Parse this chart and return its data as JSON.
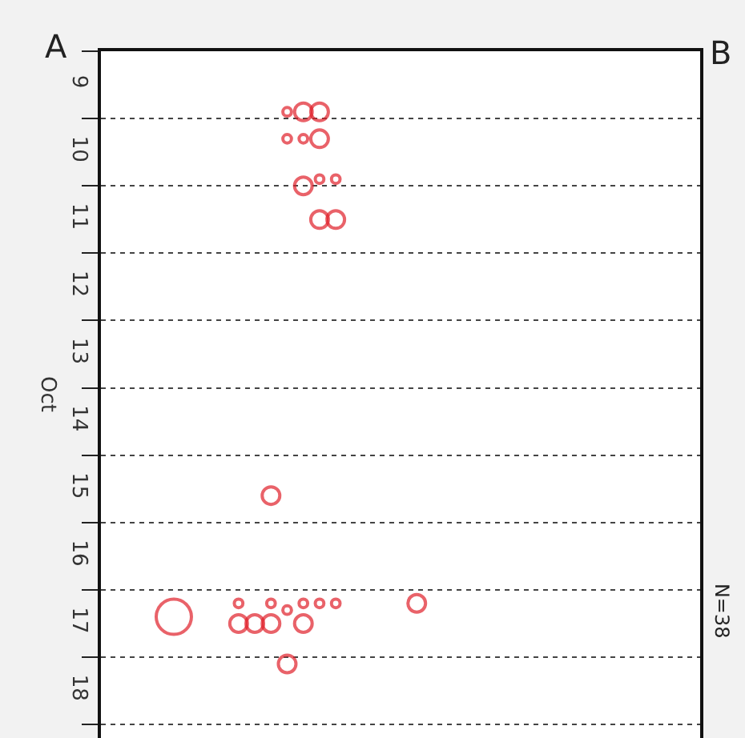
{
  "chart_data": {
    "type": "bubble",
    "ylabel": "Oct",
    "categories": [
      null,
      null,
      null,
      null,
      null,
      null,
      null,
      null,
      null,
      null,
      null,
      null,
      null,
      null,
      null,
      null,
      null,
      null,
      null,
      null,
      null,
      null,
      null,
      null,
      null,
      null,
      null,
      null,
      null,
      null,
      null,
      null,
      null,
      null,
      null,
      null,
      null
    ],
    "series": [
      {
        "color": "#e0202a",
        "values": [
          null,
          null,
          null,
          null,
          17.4,
          null,
          null,
          null,
          17.2,
          17.5,
          15.6,
          9.9,
          9.9,
          9.9,
          10.9,
          null,
          null,
          null,
          null,
          17.2,
          null,
          null,
          null,
          null,
          null,
          null,
          null,
          null,
          null,
          null,
          null,
          null,
          null,
          null,
          null,
          null,
          null
        ],
        "sizes": [
          null,
          null,
          null,
          null,
          1,
          null,
          null,
          null,
          0.06,
          0.25,
          0.25,
          0.06,
          0.25,
          0.25,
          0.06,
          null,
          null,
          null,
          null,
          0.25,
          null,
          null,
          null,
          null,
          null,
          null,
          null,
          null,
          null,
          null,
          null,
          null,
          null,
          null,
          null,
          null,
          null
        ]
      },
      {
        "color": "#e0202a",
        "values": [
          null,
          null,
          null,
          null,
          null,
          null,
          null,
          null,
          17.5,
          null,
          17.5,
          10.3,
          10.3,
          10.3,
          11.5,
          null,
          null,
          null,
          null,
          null,
          null,
          null,
          null,
          null,
          null,
          null,
          null,
          null,
          null,
          null,
          null,
          null,
          null,
          null,
          null,
          null,
          null
        ],
        "sizes": [
          null,
          null,
          null,
          null,
          null,
          null,
          null,
          null,
          0.25,
          null,
          0.25,
          0.06,
          0.06,
          0.25,
          0.25,
          null,
          null,
          null,
          null,
          null,
          null,
          null,
          null,
          null,
          null,
          null,
          null,
          null,
          null,
          null,
          null,
          null,
          null,
          null,
          null,
          null,
          null
        ]
      },
      {
        "color": "#e0202a",
        "values": [
          null,
          null,
          null,
          null,
          null,
          null,
          null,
          null,
          null,
          null,
          17.2,
          17.3,
          11.0,
          10.9,
          17.2,
          null,
          null,
          null,
          null,
          null,
          null,
          null,
          null,
          null,
          null,
          null,
          null,
          null,
          null,
          null,
          null,
          null,
          null,
          null,
          null,
          null,
          null
        ],
        "sizes": [
          null,
          null,
          null,
          null,
          null,
          null,
          null,
          null,
          null,
          null,
          0.06,
          0.06,
          0.25,
          0.06,
          0.06,
          null,
          null,
          null,
          null,
          null,
          null,
          null,
          null,
          null,
          null,
          null,
          null,
          null,
          null,
          null,
          null,
          null,
          null,
          null,
          null,
          null,
          null
        ]
      },
      {
        "color": "#e0202a",
        "values": [
          null,
          null,
          null,
          null,
          null,
          null,
          null,
          null,
          null,
          null,
          null,
          18.1,
          17.2,
          11.5,
          null,
          null,
          null,
          null,
          null,
          null,
          null,
          null,
          null,
          null,
          null,
          null,
          null,
          null,
          null,
          null,
          null,
          null,
          null,
          null,
          null,
          null,
          null
        ],
        "sizes": [
          null,
          null,
          null,
          null,
          null,
          null,
          null,
          null,
          null,
          null,
          null,
          0.25,
          0.06,
          0.25,
          null,
          null,
          null,
          null,
          null,
          null,
          null,
          null,
          null,
          null,
          null,
          null,
          null,
          null,
          null,
          null,
          null,
          null,
          null,
          null,
          null,
          null,
          null
        ]
      },
      {
        "color": "#e0202a",
        "values": [
          null,
          null,
          null,
          null,
          null,
          null,
          null,
          null,
          null,
          null,
          null,
          null,
          17.5,
          17.2,
          null,
          null,
          null,
          null,
          null,
          null,
          null,
          null,
          null,
          null,
          null,
          null,
          null,
          null,
          null,
          null,
          null,
          null,
          null,
          null,
          null,
          null,
          null
        ],
        "sizes": [
          null,
          null,
          null,
          null,
          null,
          null,
          null,
          null,
          null,
          null,
          null,
          null,
          0.25,
          0.06,
          null,
          null,
          null,
          null,
          null,
          null,
          null,
          null,
          null,
          null,
          null,
          null,
          null,
          null,
          null,
          null,
          null,
          null,
          null,
          null,
          null,
          null,
          null
        ]
      }
    ],
    "ylim": [
      19.2,
      9
    ],
    "yticks": [
      {
        "value": 9,
        "label": null
      },
      {
        "value": 9.5,
        "label": "9"
      },
      {
        "value": 10,
        "label": null
      },
      {
        "value": 10.5,
        "label": "10"
      },
      {
        "value": 11,
        "label": null
      },
      {
        "value": 11.5,
        "label": "11"
      },
      {
        "value": 12,
        "label": null
      },
      {
        "value": 12.5,
        "label": "12"
      },
      {
        "value": 13,
        "label": null
      },
      {
        "value": 13.5,
        "label": "13"
      },
      {
        "value": 14,
        "label": null
      },
      {
        "value": 14.5,
        "label": "14"
      },
      {
        "value": 15,
        "label": null
      },
      {
        "value": 15.5,
        "label": "15"
      },
      {
        "value": 16,
        "label": null
      },
      {
        "value": 16.5,
        "label": "16"
      },
      {
        "value": 17,
        "label": null
      },
      {
        "value": 17.5,
        "label": "17"
      },
      {
        "value": 18,
        "label": null
      },
      {
        "value": 18.5,
        "label": "18"
      },
      {
        "value": 19,
        "label": null
      }
    ],
    "grid": "y",
    "tick_labels": "y",
    "marker": "circle",
    "annotations": [
      "A",
      "B",
      "N=38"
    ]
  }
}
